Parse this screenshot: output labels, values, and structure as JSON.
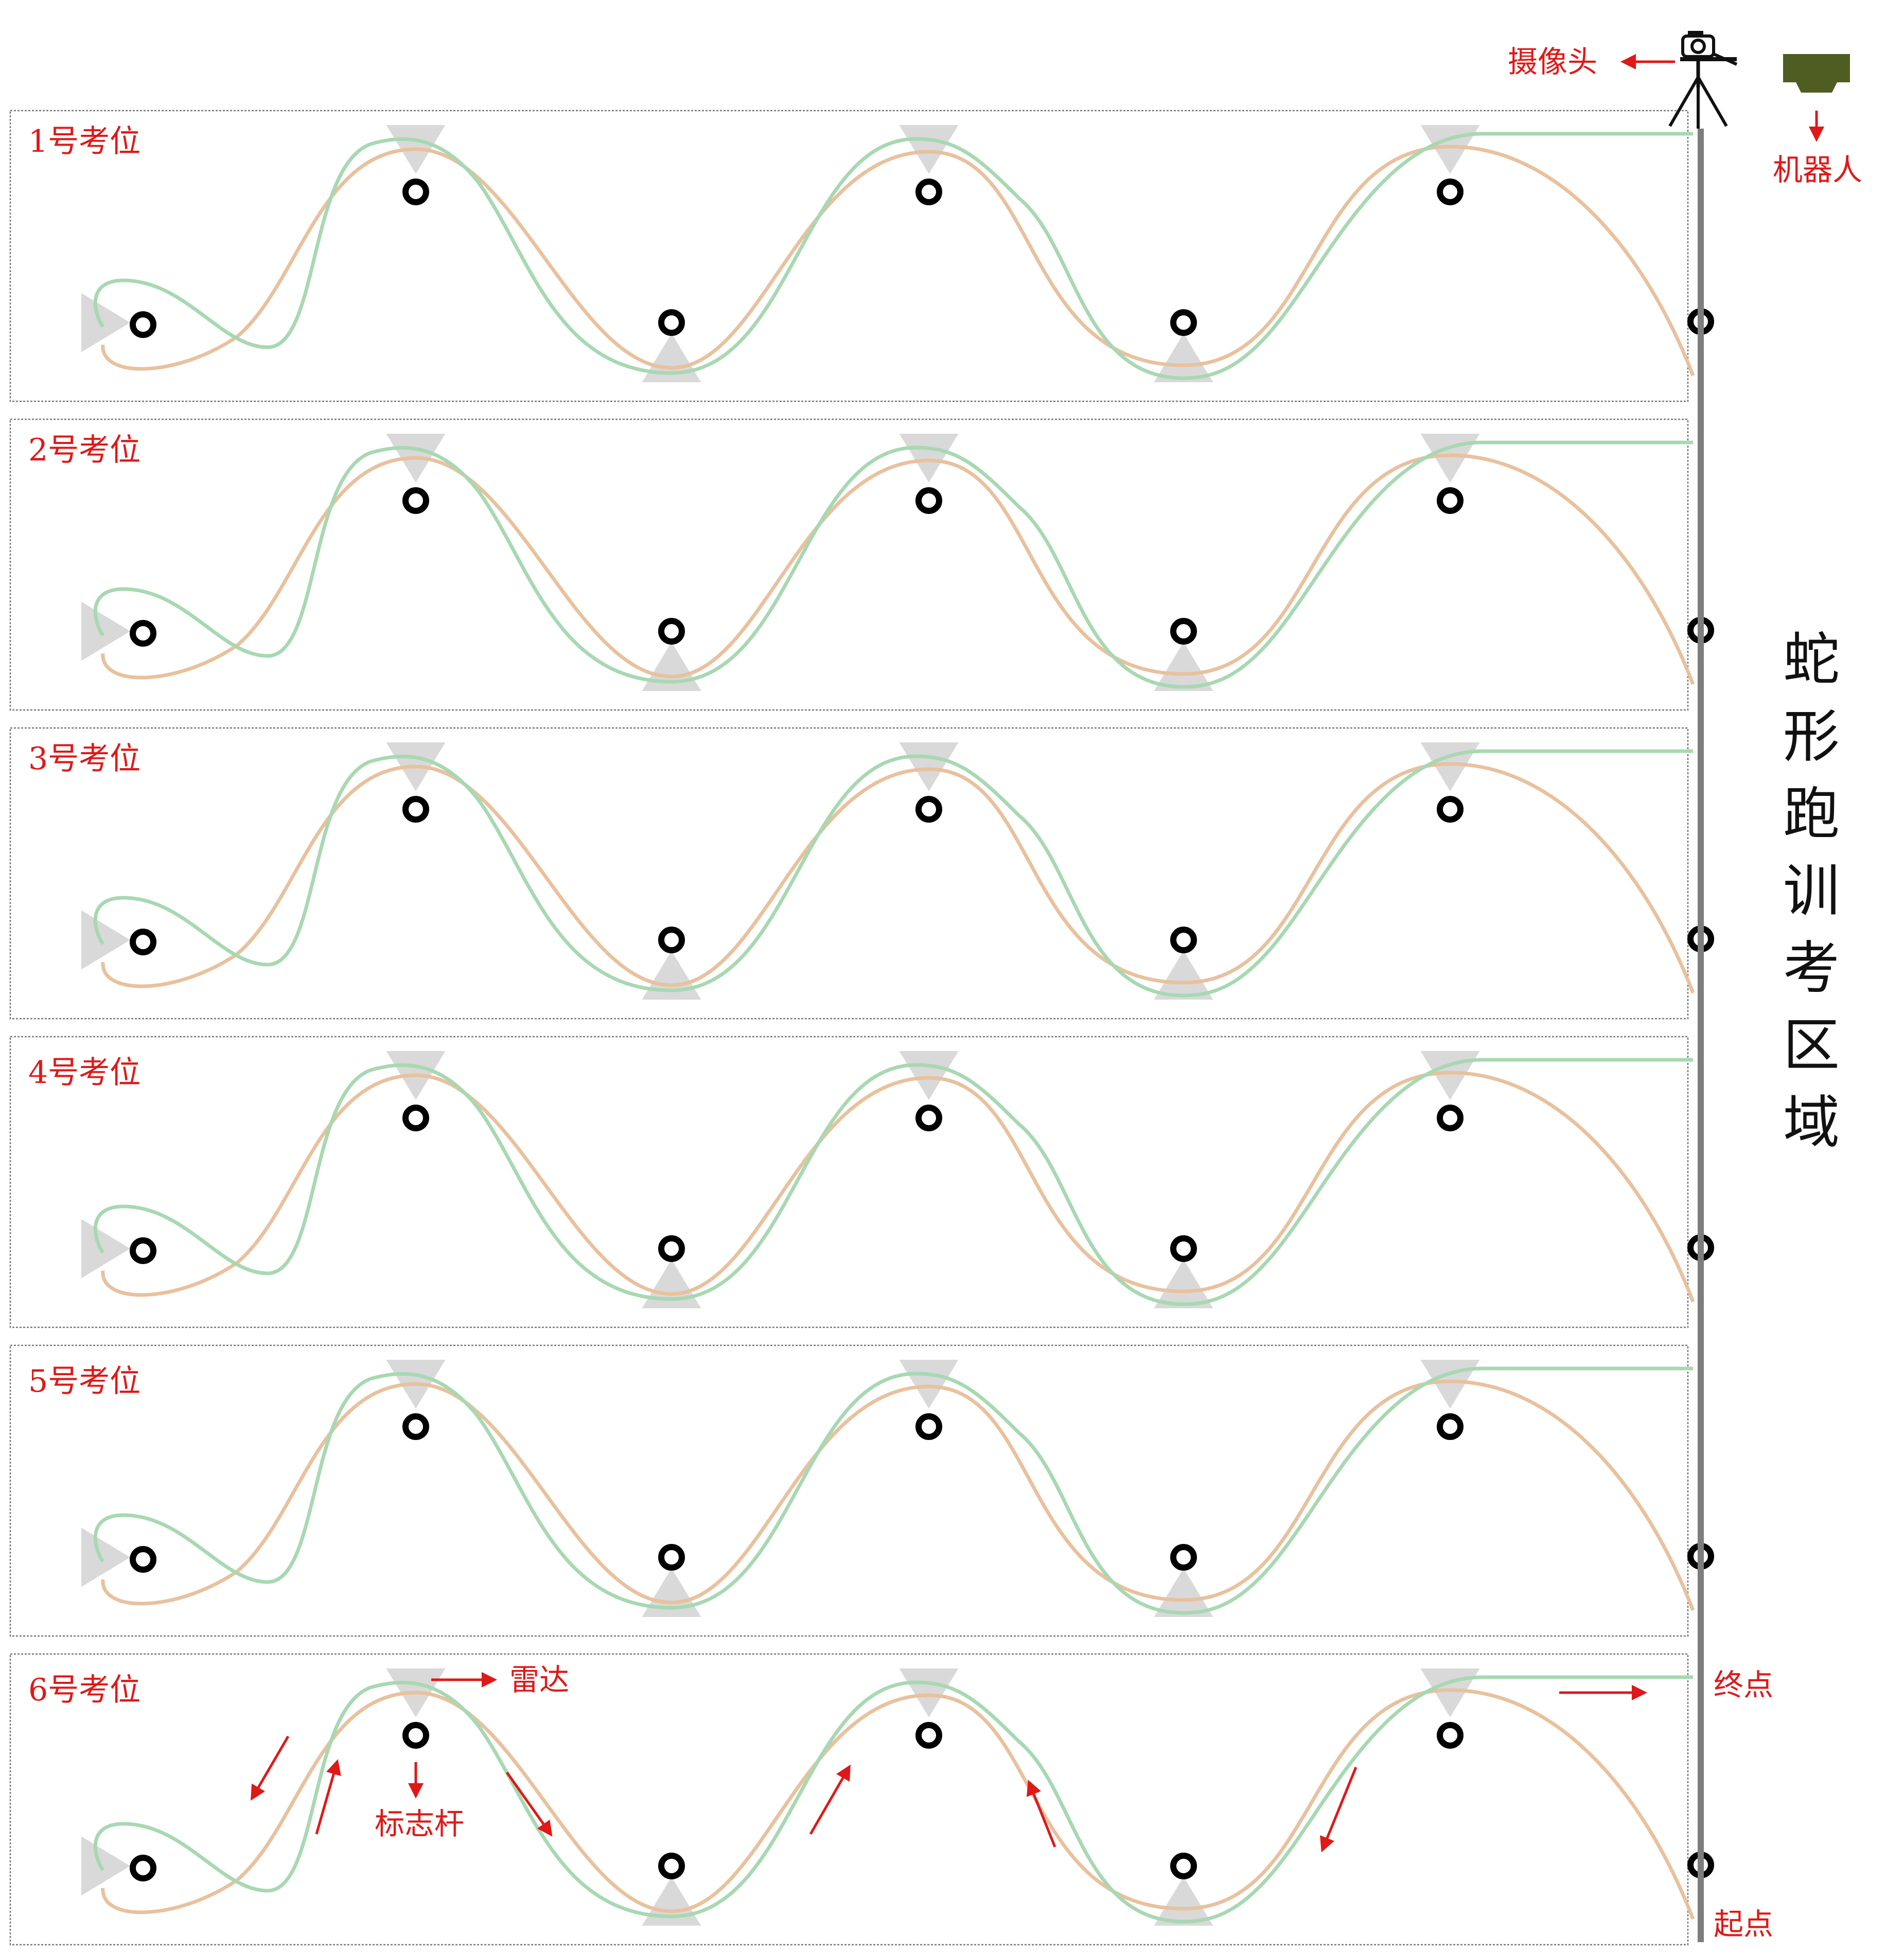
{
  "colors": {
    "orange_path": "#e8c19e",
    "green_path": "#a8d8b2",
    "radar": "#d9d9d9",
    "pole": "#000000",
    "annotation": "#e01818",
    "rail": "#7d7d7d",
    "robot": "#4f5d22"
  },
  "lanes": [
    {
      "label": "1号考位"
    },
    {
      "label": "2号考位"
    },
    {
      "label": "3号考位"
    },
    {
      "label": "4号考位"
    },
    {
      "label": "5号考位"
    },
    {
      "label": "6号考位"
    }
  ],
  "annotations": {
    "camera": "摄像头",
    "robot": "机器人",
    "radar": "雷达",
    "pole": "标志杆",
    "finish": "终点",
    "start": "起点"
  },
  "icons": {
    "camera": "camera-tripod-icon",
    "robot": "robot-icon",
    "radar": "radar-triangle-icon",
    "pole": "marker-pole-icon",
    "direction": "red-arrow-icon"
  },
  "side_title": [
    "蛇",
    "形",
    "跑",
    "训",
    "考",
    "区",
    "域"
  ]
}
